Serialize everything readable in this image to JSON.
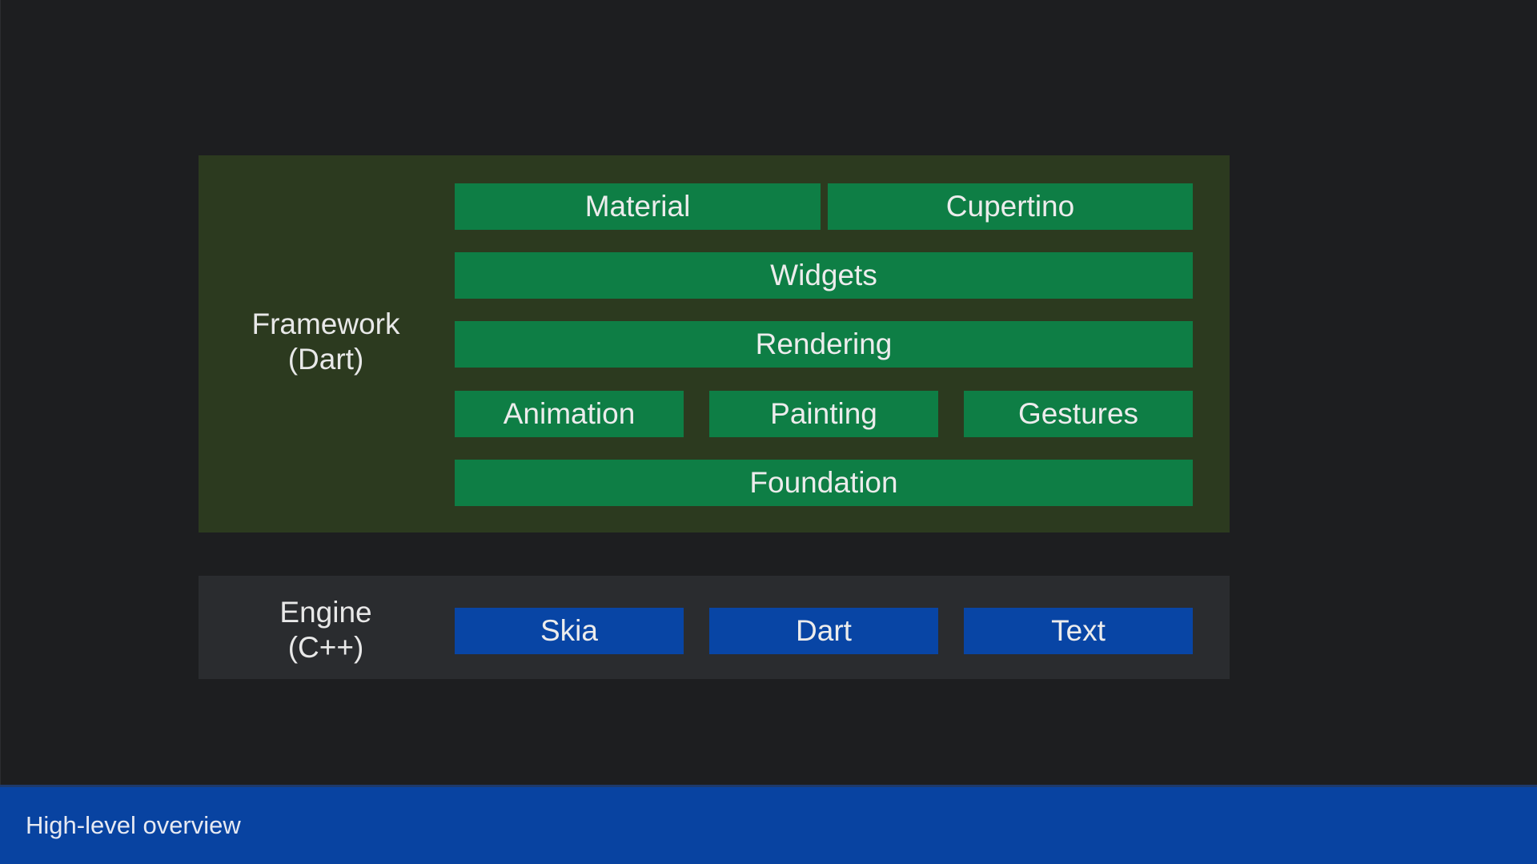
{
  "framework": {
    "label_line1": "Framework",
    "label_line2": "(Dart)",
    "blocks": {
      "material": "Material",
      "cupertino": "Cupertino",
      "widgets": "Widgets",
      "rendering": "Rendering",
      "animation": "Animation",
      "painting": "Painting",
      "gestures": "Gestures",
      "foundation": "Foundation"
    }
  },
  "engine": {
    "label_line1": "Engine",
    "label_line2": "(C++)",
    "blocks": {
      "skia": "Skia",
      "dart": "Dart",
      "text": "Text"
    }
  },
  "footer": {
    "title": "High-level overview"
  },
  "colors": {
    "background": "#1d1e20",
    "framework_panel": "#2c3a1f",
    "engine_panel": "#2a2c2f",
    "framework_block": "#0e7e45",
    "engine_block": "#0845a5",
    "footer_bar": "#0843a1"
  }
}
